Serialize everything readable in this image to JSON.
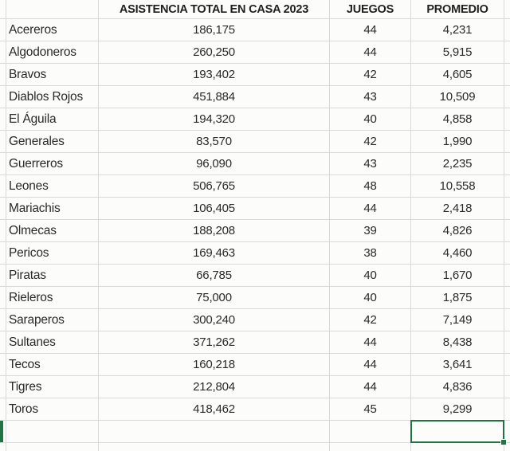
{
  "sheet": {
    "columns": [
      {
        "key": "team",
        "header": ""
      },
      {
        "key": "attendance",
        "header": "ASISTENCIA TOTAL EN CASA 2023"
      },
      {
        "key": "games",
        "header": "JUEGOS"
      },
      {
        "key": "average",
        "header": "PROMEDIO"
      }
    ],
    "rows": [
      {
        "team": "Acereros",
        "attendance": "186,175",
        "games": "44",
        "average": "4,231"
      },
      {
        "team": "Algodoneros",
        "attendance": "260,250",
        "games": "44",
        "average": "5,915"
      },
      {
        "team": "Bravos",
        "attendance": "193,402",
        "games": "42",
        "average": "4,605"
      },
      {
        "team": "Diablos Rojos",
        "attendance": "451,884",
        "games": "43",
        "average": "10,509"
      },
      {
        "team": "El Águila",
        "attendance": "194,320",
        "games": "40",
        "average": "4,858"
      },
      {
        "team": "Generales",
        "attendance": "83,570",
        "games": "42",
        "average": "1,990"
      },
      {
        "team": "Guerreros",
        "attendance": "96,090",
        "games": "43",
        "average": "2,235"
      },
      {
        "team": "Leones",
        "attendance": "506,765",
        "games": "48",
        "average": "10,558"
      },
      {
        "team": "Mariachis",
        "attendance": "106,405",
        "games": "44",
        "average": "2,418"
      },
      {
        "team": "Olmecas",
        "attendance": "188,208",
        "games": "39",
        "average": "4,826"
      },
      {
        "team": "Pericos",
        "attendance": "169,463",
        "games": "38",
        "average": "4,460"
      },
      {
        "team": "Piratas",
        "attendance": "66,785",
        "games": "40",
        "average": "1,670"
      },
      {
        "team": "Rieleros",
        "attendance": "75,000",
        "games": "40",
        "average": "1,875"
      },
      {
        "team": "Saraperos",
        "attendance": "300,240",
        "games": "42",
        "average": "7,149"
      },
      {
        "team": "Sultanes",
        "attendance": "371,262",
        "games": "44",
        "average": "8,438"
      },
      {
        "team": "Tecos",
        "attendance": "160,218",
        "games": "44",
        "average": "3,641"
      },
      {
        "team": "Tigres",
        "attendance": "212,804",
        "games": "44",
        "average": "4,836"
      },
      {
        "team": "Toros",
        "attendance": "418,462",
        "games": "45",
        "average": "9,299"
      }
    ],
    "selection": {
      "column": "PROMEDIO",
      "below_row": "Toros",
      "value": ""
    },
    "colors": {
      "selection_green": "#217346",
      "gridline": "#d9d9d9",
      "cell_background": "#fcfcfb",
      "text": "#2a2a2a"
    }
  }
}
